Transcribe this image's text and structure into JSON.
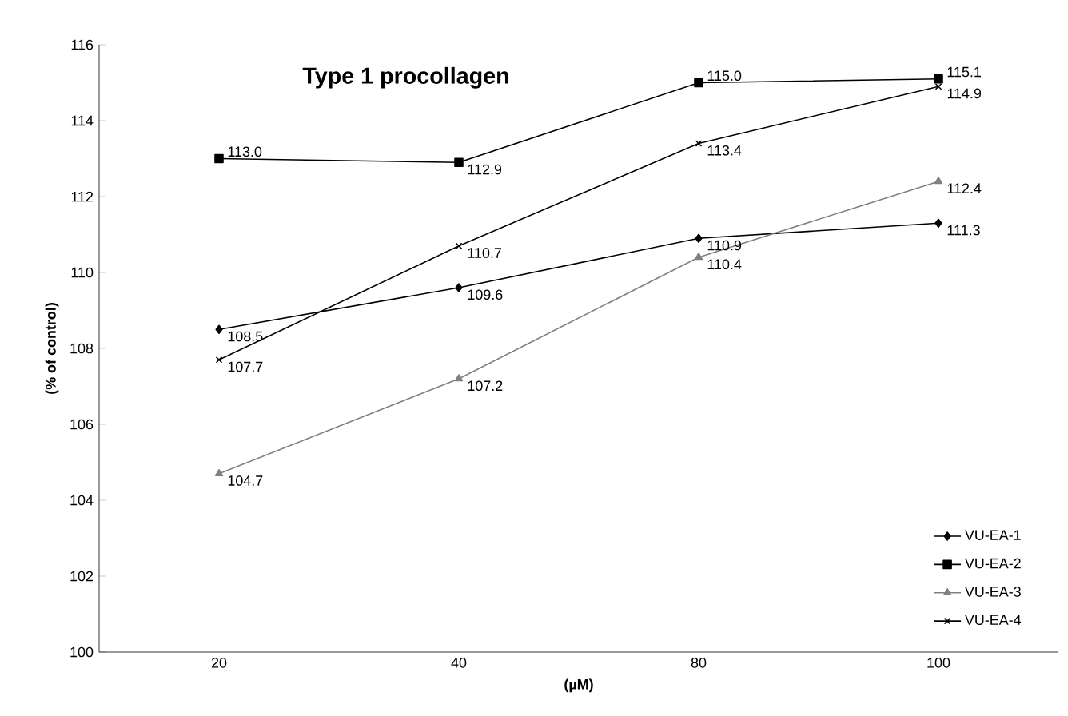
{
  "chart_data": {
    "type": "line",
    "title": "Type 1 procollagen",
    "xlabel": "(µM)",
    "ylabel": "(% of control)",
    "categories": [
      "20",
      "40",
      "80",
      "100"
    ],
    "series": [
      {
        "name": "VU-EA-1",
        "color": "#000000",
        "marker": "diamond",
        "values": [
          108.5,
          109.6,
          110.9,
          111.3
        ],
        "value_labels": [
          "108.5",
          "109.6",
          "110.9",
          "111.3"
        ]
      },
      {
        "name": "VU-EA-2",
        "color": "#000000",
        "marker": "square",
        "values": [
          113.0,
          112.9,
          115.0,
          115.1
        ],
        "value_labels": [
          "113.0",
          "112.9",
          "115.0",
          "115.1"
        ]
      },
      {
        "name": "VU-EA-3",
        "color": "#808080",
        "marker": "triangle",
        "values": [
          104.7,
          107.2,
          110.4,
          112.4
        ],
        "value_labels": [
          "104.7",
          "107.2",
          "110.4",
          "112.4"
        ]
      },
      {
        "name": "VU-EA-4",
        "color": "#000000",
        "marker": "cross",
        "values": [
          107.7,
          110.7,
          113.4,
          114.9
        ],
        "value_labels": [
          "107.7",
          "110.7",
          "113.4",
          "114.9"
        ]
      }
    ],
    "ylim": [
      100,
      116
    ],
    "yticks": [
      100,
      102,
      104,
      106,
      108,
      110,
      112,
      114,
      116
    ],
    "grid": false,
    "legend": "bottom right"
  }
}
